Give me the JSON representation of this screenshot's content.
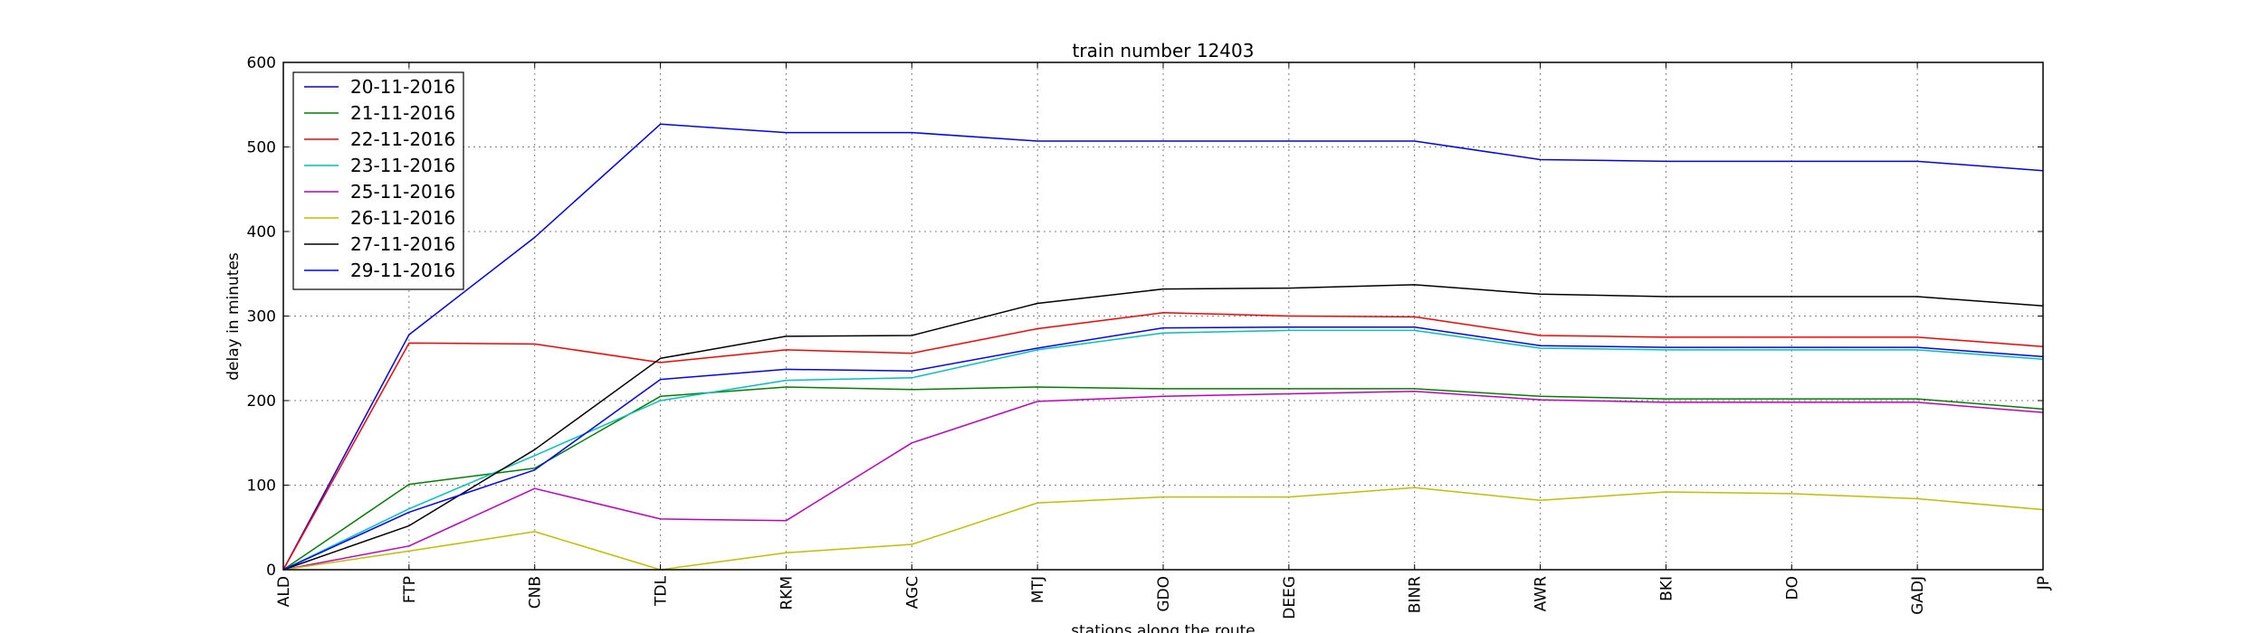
{
  "chart_data": {
    "type": "line",
    "title": "train number 12403",
    "xlabel": "stations along the route",
    "ylabel": "delay in minutes",
    "categories": [
      "ALD",
      "FTP",
      "CNB",
      "TDL",
      "RKM",
      "AGC",
      "MTJ",
      "GDO",
      "DEEG",
      "BINR",
      "AWR",
      "BKI",
      "DO",
      "GADJ",
      "JP"
    ],
    "ylim": [
      0,
      600
    ],
    "yticks": [
      0,
      100,
      200,
      300,
      400,
      500,
      600
    ],
    "grid": true,
    "legend_position": "top-left",
    "series": [
      {
        "name": "20-11-2016",
        "color": "#0000ff",
        "values": [
          0,
          278,
          393,
          527,
          517,
          517,
          507,
          507,
          507,
          507,
          485,
          483,
          483,
          483,
          472
        ]
      },
      {
        "name": "21-11-2016",
        "color": "#008000",
        "values": [
          0,
          101,
          120,
          205,
          216,
          213,
          216,
          214,
          214,
          214,
          205,
          202,
          202,
          202,
          190
        ]
      },
      {
        "name": "22-11-2016",
        "color": "#ff0000",
        "values": [
          0,
          268,
          267,
          245,
          260,
          256,
          285,
          304,
          300,
          299,
          277,
          275,
          275,
          275,
          264
        ]
      },
      {
        "name": "23-11-2016",
        "color": "#00bfbf",
        "values": [
          0,
          72,
          135,
          200,
          224,
          227,
          260,
          280,
          283,
          283,
          262,
          260,
          260,
          260,
          249
        ]
      },
      {
        "name": "25-11-2016",
        "color": "#bf00bf",
        "values": [
          0,
          28,
          96,
          60,
          58,
          150,
          199,
          205,
          208,
          211,
          201,
          198,
          198,
          198,
          186
        ]
      },
      {
        "name": "26-11-2016",
        "color": "#bfbf00",
        "values": [
          0,
          22,
          45,
          0,
          20,
          30,
          79,
          86,
          86,
          97,
          82,
          92,
          90,
          84,
          71
        ]
      },
      {
        "name": "27-11-2016",
        "color": "#000000",
        "values": [
          0,
          52,
          142,
          250,
          276,
          277,
          315,
          332,
          333,
          337,
          326,
          323,
          323,
          323,
          312
        ]
      },
      {
        "name": "29-11-2016",
        "color": "#0000ff",
        "values": [
          0,
          68,
          118,
          225,
          237,
          235,
          262,
          286,
          287,
          287,
          265,
          263,
          263,
          263,
          252
        ]
      }
    ]
  }
}
